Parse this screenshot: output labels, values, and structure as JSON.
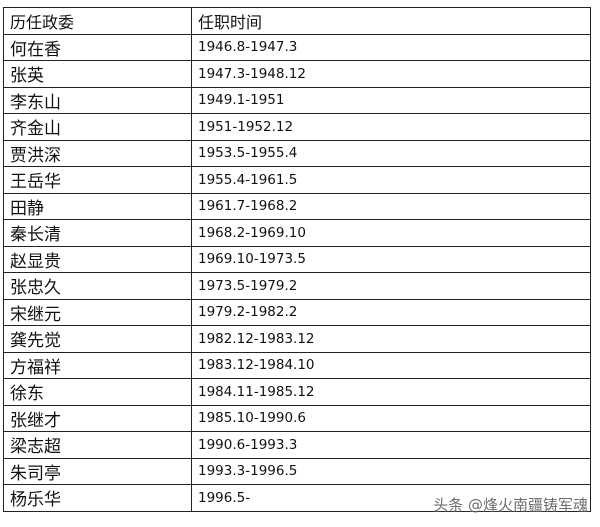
{
  "table": {
    "headers": [
      "历任政委",
      "任职时间"
    ],
    "rows": [
      {
        "name": "何在香",
        "term": "1946.8-1947.3"
      },
      {
        "name": "张英",
        "term": "1947.3-1948.12"
      },
      {
        "name": "李东山",
        "term": "1949.1-1951"
      },
      {
        "name": "齐金山",
        "term": "1951-1952.12"
      },
      {
        "name": "贾洪深",
        "term": "1953.5-1955.4"
      },
      {
        "name": "王岳华",
        "term": "1955.4-1961.5"
      },
      {
        "name": "田静",
        "term": "1961.7-1968.2"
      },
      {
        "name": "秦长清",
        "term": "1968.2-1969.10"
      },
      {
        "name": "赵显贵",
        "term": "1969.10-1973.5"
      },
      {
        "name": "张忠久",
        "term": "1973.5-1979.2"
      },
      {
        "name": "宋继元",
        "term": "1979.2-1982.2"
      },
      {
        "name": "龚先觉",
        "term": "1982.12-1983.12"
      },
      {
        "name": "方福祥",
        "term": "1983.12-1984.10"
      },
      {
        "name": "徐东",
        "term": "1984.11-1985.12"
      },
      {
        "name": "张继才",
        "term": "1985.10-1990.6"
      },
      {
        "name": "梁志超",
        "term": "1990.6-1993.3"
      },
      {
        "name": "朱司亭",
        "term": "1993.3-1996.5"
      },
      {
        "name": "杨乐华",
        "term": "1996.5-"
      }
    ]
  },
  "watermark": "头条 @烽火南疆铸军魂"
}
